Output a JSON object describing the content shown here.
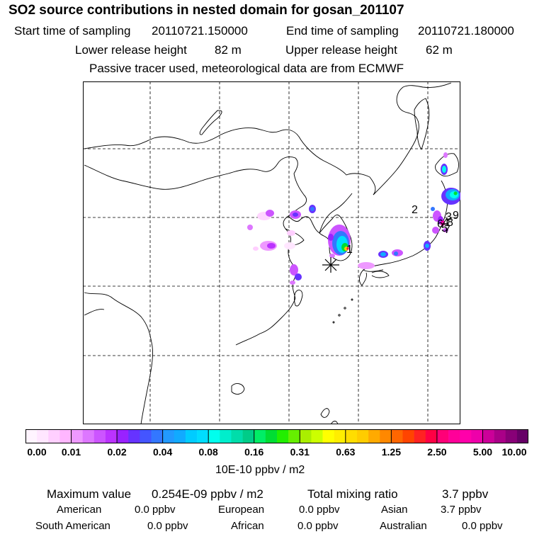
{
  "header": {
    "title": "SO2 source contributions in nested domain for gosan_201107",
    "start_label": "Start time of sampling",
    "start_value": "20110721.150000",
    "end_label": "End time of sampling",
    "end_value": "20110721.180000",
    "lower_label": "Lower release height",
    "lower_value": "82 m",
    "upper_label": "Upper release height",
    "upper_value": "62 m",
    "note": "Passive tracer used, meteorological data are from ECMWF"
  },
  "map": {
    "source_labels": [
      "1",
      "2",
      "3",
      "4",
      "5",
      "6",
      "7",
      "8",
      "9"
    ],
    "receptor_marker": "asterisk-marker-icon",
    "coast_color": "#000000",
    "grid_color": "#000000"
  },
  "colorbar": {
    "tick_labels": [
      "0.00",
      "0.01",
      "0.02",
      "0.04",
      "0.08",
      "0.16",
      "0.31",
      "0.63",
      "1.25",
      "2.50",
      "5.00",
      "10.00"
    ],
    "colors": [
      "#fff4ff",
      "#ffe6ff",
      "#ffcfff",
      "#ffb6ff",
      "#ee99ff",
      "#dd77ff",
      "#cc55ff",
      "#bb33ff",
      "#9922ff",
      "#6633ff",
      "#4455ff",
      "#3377ff",
      "#2299ff",
      "#11aaff",
      "#00ccff",
      "#00ddff",
      "#00ffee",
      "#00eecc",
      "#00ddaa",
      "#00cc88",
      "#00ee66",
      "#00dd33",
      "#22ee00",
      "#66ee00",
      "#aaee00",
      "#ccff00",
      "#ffff00",
      "#ffee00",
      "#ffdd00",
      "#ffcc00",
      "#ffaa00",
      "#ff8800",
      "#ff6600",
      "#ff4400",
      "#ff2222",
      "#ff0044",
      "#ff0077",
      "#ff0099",
      "#ff00aa",
      "#ee00aa",
      "#cc0099",
      "#aa0088",
      "#880077",
      "#660066"
    ],
    "units": "10E-10 ppbv / m2"
  },
  "summary": {
    "max_label": "Maximum value",
    "max_value": "0.254E-09 ppbv / m2",
    "total_label": "Total mixing ratio",
    "total_value": "3.7 ppbv",
    "regions": [
      {
        "name": "American",
        "value": "0.0 ppbv"
      },
      {
        "name": "European",
        "value": "0.0 ppbv"
      },
      {
        "name": "Asian",
        "value": "3.7 ppbv"
      },
      {
        "name": "South American",
        "value": "0.0 ppbv"
      },
      {
        "name": "African",
        "value": "0.0 ppbv"
      },
      {
        "name": "Australian",
        "value": "0.0 ppbv"
      }
    ]
  }
}
